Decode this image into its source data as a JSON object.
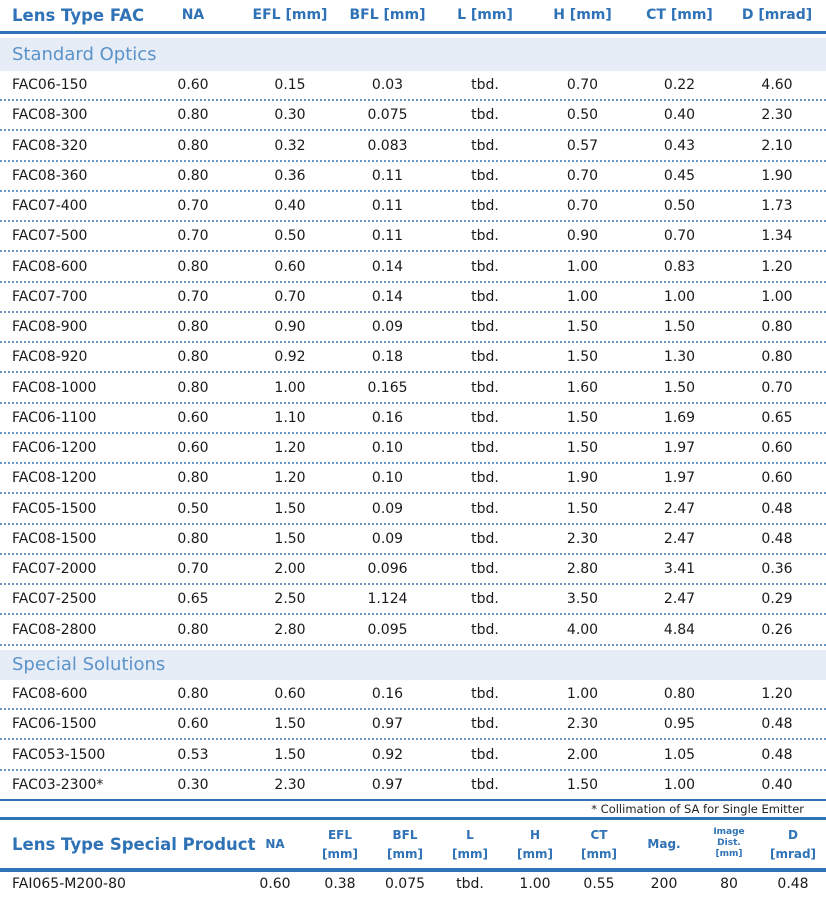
{
  "fac_table": {
    "headers": [
      "Lens Type FAC",
      "NA",
      "EFL [mm]",
      "BFL [mm]",
      "L [mm]",
      "H [mm]",
      "CT [mm]",
      "D [mrad]"
    ],
    "sections": [
      {
        "title": "Standard Optics",
        "rows": [
          [
            "FAC06-150",
            "0.60",
            "0.15",
            "0.03",
            "tbd.",
            "0.70",
            "0.22",
            "4.60"
          ],
          [
            "FAC08-300",
            "0.80",
            "0.30",
            "0.075",
            "tbd.",
            "0.50",
            "0.40",
            "2.30"
          ],
          [
            "FAC08-320",
            "0.80",
            "0.32",
            "0.083",
            "tbd.",
            "0.57",
            "0.43",
            "2.10"
          ],
          [
            "FAC08-360",
            "0.80",
            "0.36",
            "0.11",
            "tbd.",
            "0.70",
            "0.45",
            "1.90"
          ],
          [
            "FAC07-400",
            "0.70",
            "0.40",
            "0.11",
            "tbd.",
            "0.70",
            "0.50",
            "1.73"
          ],
          [
            "FAC07-500",
            "0.70",
            "0.50",
            "0.11",
            "tbd.",
            "0.90",
            "0.70",
            "1.34"
          ],
          [
            "FAC08-600",
            "0.80",
            "0.60",
            "0.14",
            "tbd.",
            "1.00",
            "0.83",
            "1.20"
          ],
          [
            "FAC07-700",
            "0.70",
            "0.70",
            "0.14",
            "tbd.",
            "1.00",
            "1.00",
            "1.00"
          ],
          [
            "FAC08-900",
            "0.80",
            "0.90",
            "0.09",
            "tbd.",
            "1.50",
            "1.50",
            "0.80"
          ],
          [
            "FAC08-920",
            "0.80",
            "0.92",
            "0.18",
            "tbd.",
            "1.50",
            "1.30",
            "0.80"
          ],
          [
            "FAC08-1000",
            "0.80",
            "1.00",
            "0.165",
            "tbd.",
            "1.60",
            "1.50",
            "0.70"
          ],
          [
            "FAC06-1100",
            "0.60",
            "1.10",
            "0.16",
            "tbd.",
            "1.50",
            "1.69",
            "0.65"
          ],
          [
            "FAC06-1200",
            "0.60",
            "1.20",
            "0.10",
            "tbd.",
            "1.50",
            "1.97",
            "0.60"
          ],
          [
            "FAC08-1200",
            "0.80",
            "1.20",
            "0.10",
            "tbd.",
            "1.90",
            "1.97",
            "0.60"
          ],
          [
            "FAC05-1500",
            "0.50",
            "1.50",
            "0.09",
            "tbd.",
            "1.50",
            "2.47",
            "0.48"
          ],
          [
            "FAC08-1500",
            "0.80",
            "1.50",
            "0.09",
            "tbd.",
            "2.30",
            "2.47",
            "0.48"
          ],
          [
            "FAC07-2000",
            "0.70",
            "2.00",
            "0.096",
            "tbd.",
            "2.80",
            "3.41",
            "0.36"
          ],
          [
            "FAC07-2500",
            "0.65",
            "2.50",
            "1.124",
            "tbd.",
            "3.50",
            "2.47",
            "0.29"
          ],
          [
            "FAC08-2800",
            "0.80",
            "2.80",
            "0.095",
            "tbd.",
            "4.00",
            "4.84",
            "0.26"
          ]
        ]
      },
      {
        "title": "Special Solutions",
        "rows": [
          [
            "FAC08-600",
            "0.80",
            "0.60",
            "0.16",
            "tbd.",
            "1.00",
            "0.80",
            "1.20"
          ],
          [
            "FAC06-1500",
            "0.60",
            "1.50",
            "0.97",
            "tbd.",
            "2.30",
            "0.95",
            "0.48"
          ],
          [
            "FAC053-1500",
            "0.53",
            "1.50",
            "0.92",
            "tbd.",
            "2.00",
            "1.05",
            "0.48"
          ],
          [
            "FAC03-2300*",
            "0.30",
            "2.30",
            "0.97",
            "tbd.",
            "1.50",
            "1.00",
            "0.40"
          ]
        ]
      }
    ],
    "footnote": "*  Collimation of SA for Single Emitter"
  },
  "special_product": {
    "headers": [
      {
        "line1": "Lens Type Special Product"
      },
      {
        "line1": "NA"
      },
      {
        "line1": "EFL",
        "line2": "[mm]"
      },
      {
        "line1": "BFL",
        "line2": "[mm]"
      },
      {
        "line1": "L",
        "line2": "[mm]"
      },
      {
        "line1": "H",
        "line2": "[mm]"
      },
      {
        "line1": "CT",
        "line2": "[mm]"
      },
      {
        "line1": "Mag."
      },
      {
        "line1": "Image",
        "line2": "Dist.",
        "line3": "[mm]"
      },
      {
        "line1": "D",
        "line2": "[mrad]"
      }
    ],
    "rows": [
      [
        "FAI065-M200-80",
        "0.60",
        "0.38",
        "0.075",
        "tbd.",
        "1.00",
        "0.55",
        "200",
        "80",
        "0.48"
      ]
    ]
  },
  "colors": {
    "accent": "#2f72b6",
    "section_bg": "#e6edf6",
    "section_text": "#5b93c9"
  }
}
